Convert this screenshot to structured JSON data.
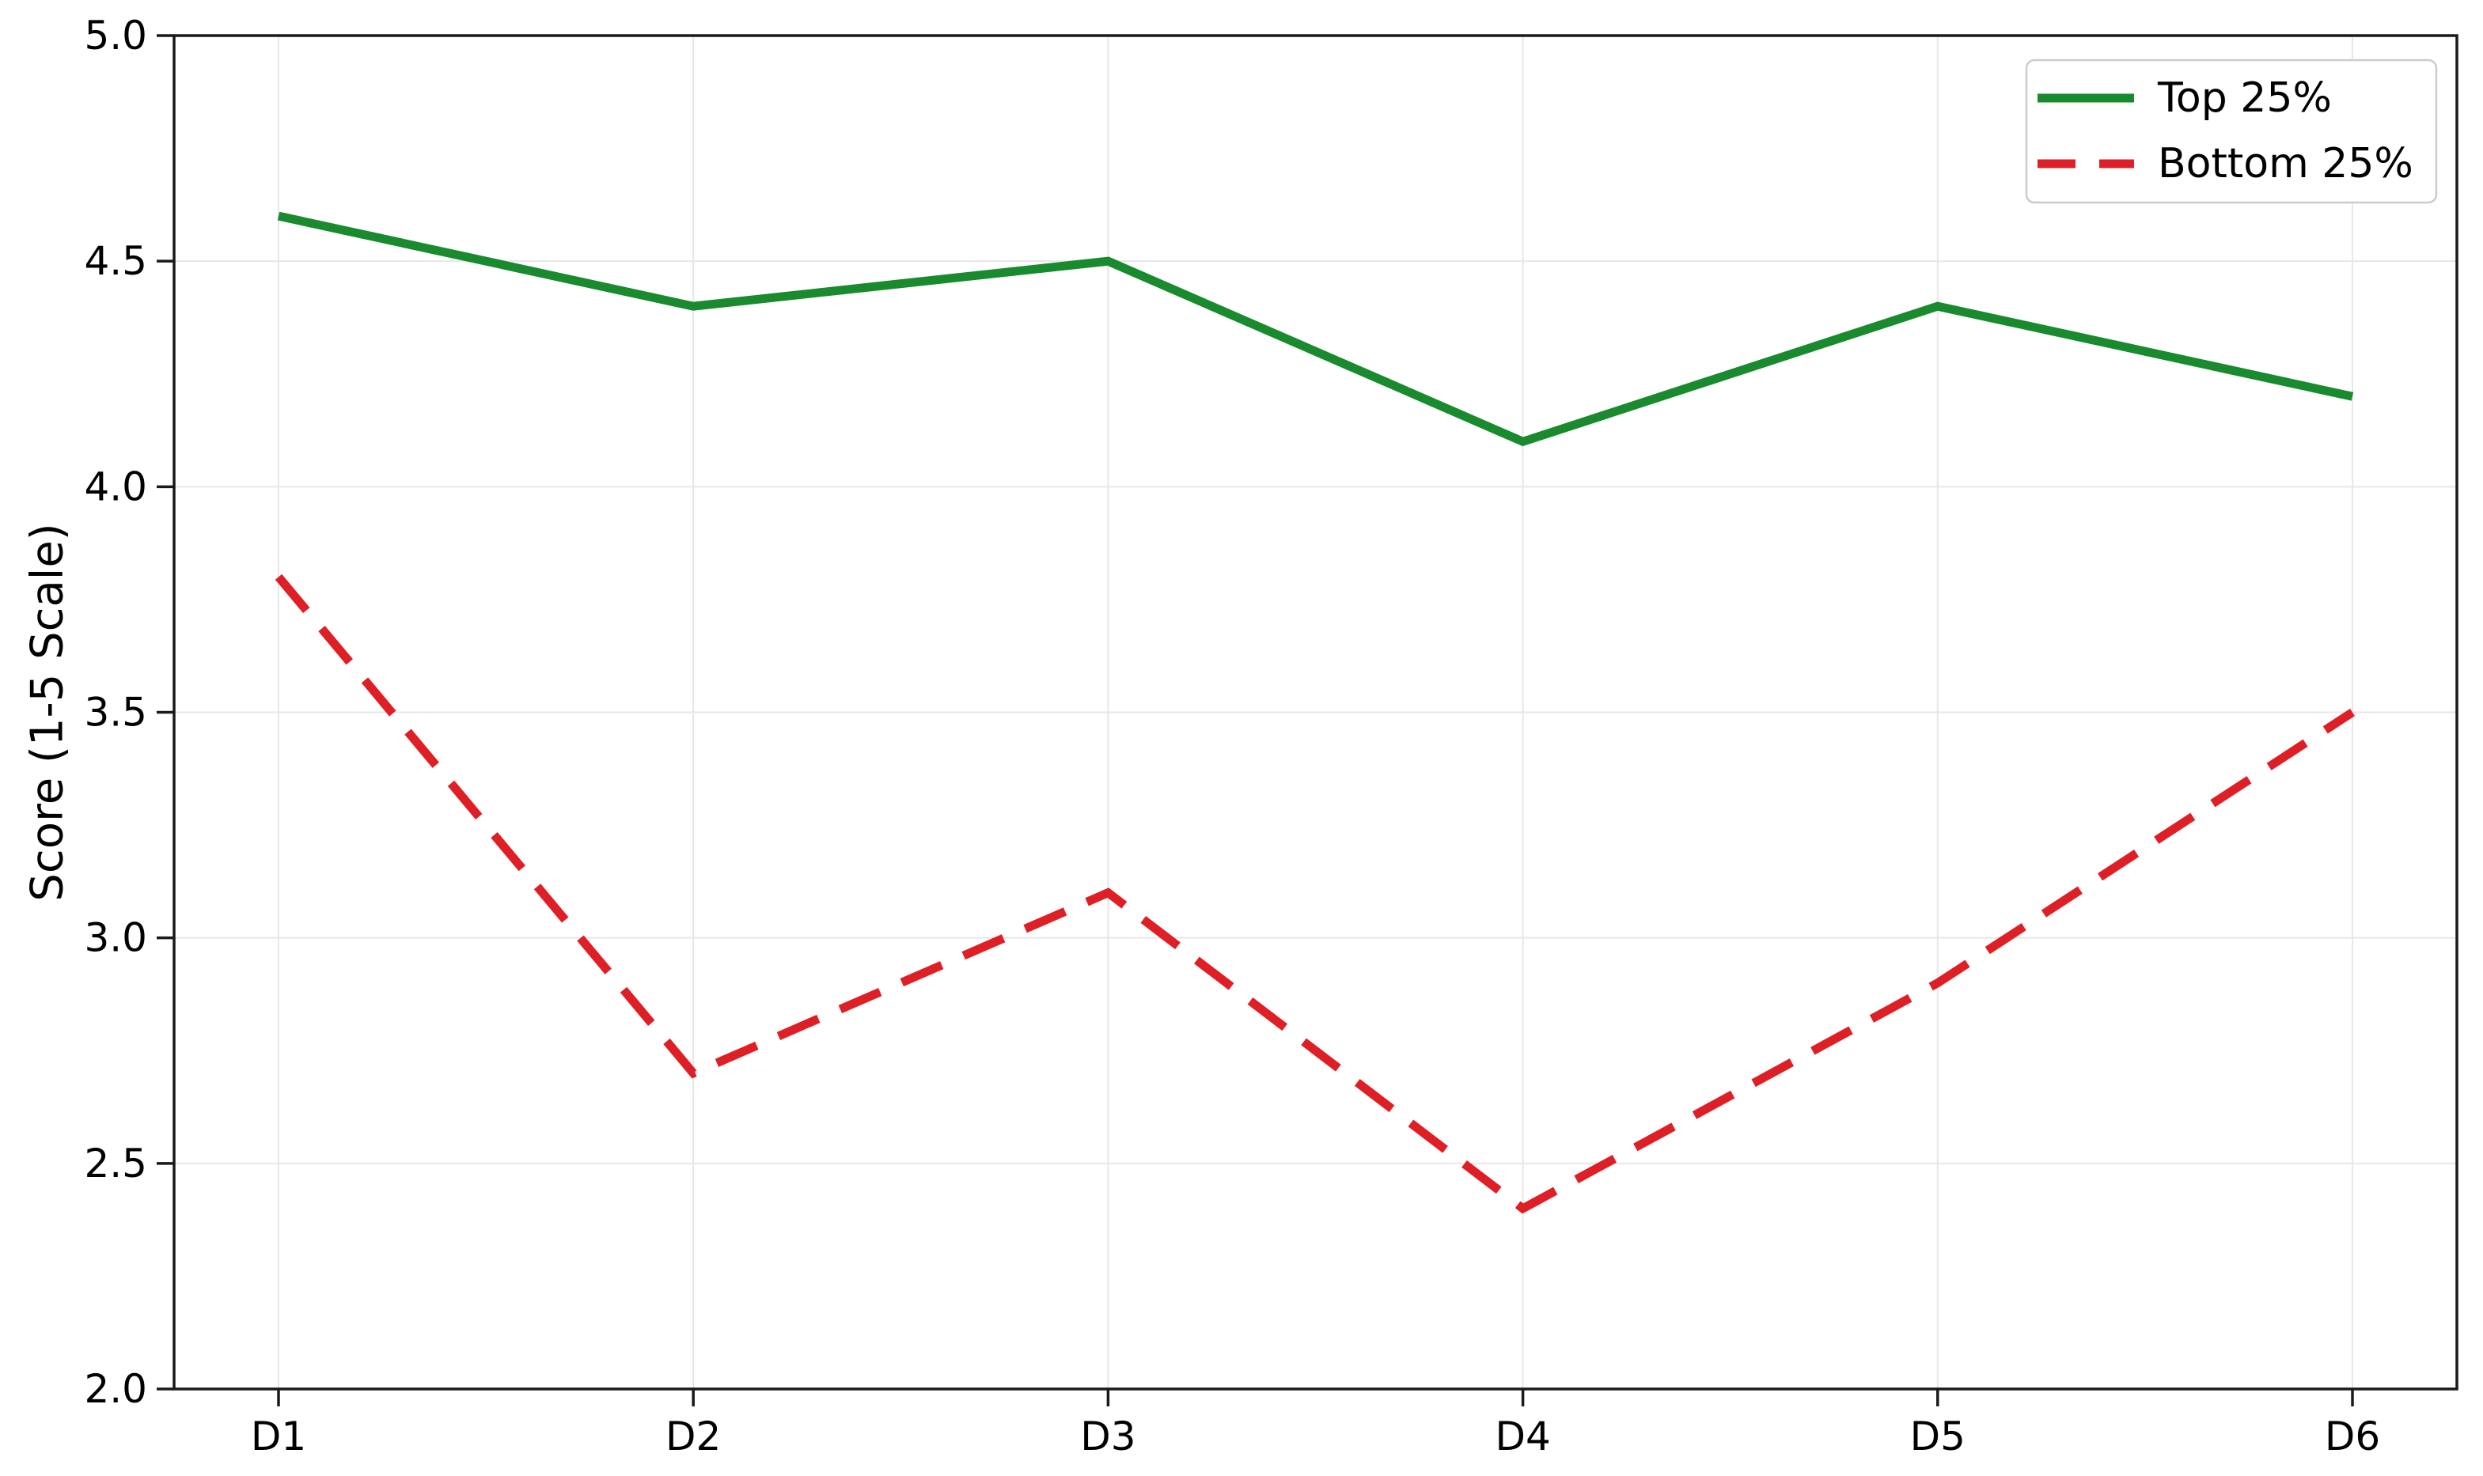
{
  "chart_data": {
    "type": "line",
    "title": "",
    "xlabel": "",
    "ylabel": "Score (1-5 Scale)",
    "categories": [
      "D1",
      "D2",
      "D3",
      "D4",
      "D5",
      "D6"
    ],
    "series": [
      {
        "name": "Top 25%",
        "values": [
          4.6,
          4.4,
          4.5,
          4.1,
          4.4,
          4.2
        ],
        "color": "#1a8a2e",
        "line_style": "solid"
      },
      {
        "name": "Bottom 25%",
        "values": [
          3.8,
          2.7,
          3.1,
          2.4,
          2.9,
          3.5
        ],
        "color": "#de1f26",
        "line_style": "dashed"
      }
    ],
    "ylim": [
      2.0,
      5.0
    ],
    "yticks": [
      5.0,
      4.5,
      4.0,
      3.5,
      3.0,
      2.5,
      2.0
    ],
    "ytick_labels": [
      "5.0",
      "4.5",
      "4.0",
      "3.5",
      "3.0",
      "2.5",
      "2.0"
    ],
    "grid": true,
    "grid_color": "#e7e7e7",
    "spine_color": "#1a1a1a",
    "legend_position": "top-right",
    "legend_entries": [
      "Top 25%",
      "Bottom 25%"
    ]
  }
}
